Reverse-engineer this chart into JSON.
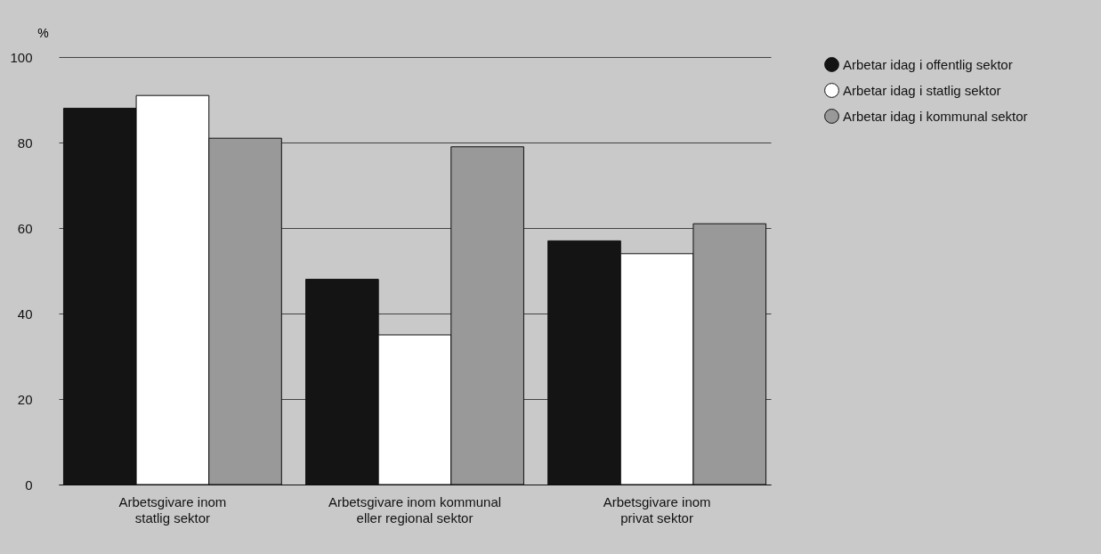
{
  "chart_data": {
    "type": "bar",
    "ylabel": "%",
    "categories": [
      "Arbetsgivare inom statlig sektor",
      "Arbetsgivare inom kommunal eller regional sektor",
      "Arbetsgivare inom privat sektor"
    ],
    "series": [
      {
        "name": "Arbetar idag i offentlig sektor",
        "color": "#141414",
        "values": [
          88,
          48,
          57
        ]
      },
      {
        "name": "Arbetar idag i statlig sektor",
        "color": "#ffffff",
        "values": [
          91,
          35,
          54
        ]
      },
      {
        "name": "Arbetar idag i kommunal sektor",
        "color": "#999999",
        "values": [
          81,
          79,
          61
        ]
      }
    ],
    "ylim": [
      0,
      100
    ],
    "yticks": [
      0,
      20,
      40,
      60,
      80,
      100
    ],
    "grid": "y",
    "legend": "top right"
  }
}
